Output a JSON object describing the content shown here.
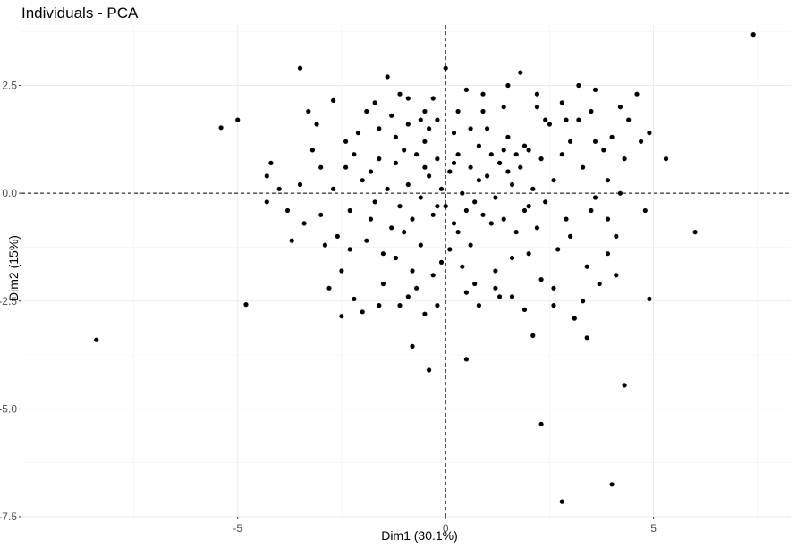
{
  "chart_data": {
    "type": "scatter",
    "title": "Individuals - PCA",
    "xlabel": "Dim1 (30.1%)",
    "ylabel": "Dim2 (15%)",
    "xlim": [
      -10.2,
      8.3
    ],
    "ylim": [
      -7.5,
      3.9
    ],
    "x_ticks": [
      -5,
      0,
      5
    ],
    "x_tick_labels": [
      "-5",
      "0",
      "5"
    ],
    "y_ticks": [
      -7.5,
      -5.0,
      -2.5,
      0.0,
      2.5
    ],
    "y_tick_labels": [
      "-7.5",
      "-5.0",
      "-2.5",
      "0.0",
      "2.5"
    ],
    "grid": true,
    "reference_lines": {
      "x": 0,
      "y": 0,
      "style": "dashed"
    },
    "point_color": "#000000",
    "points": [
      [
        7.4,
        3.68
      ],
      [
        -8.4,
        -3.4
      ],
      [
        -5.4,
        1.52
      ],
      [
        -5.0,
        1.7
      ],
      [
        -4.8,
        -2.58
      ],
      [
        -3.5,
        2.9
      ],
      [
        6.0,
        -0.9
      ],
      [
        5.3,
        0.8
      ],
      [
        4.9,
        -2.45
      ],
      [
        4.3,
        -4.45
      ],
      [
        4.0,
        -6.75
      ],
      [
        2.8,
        -7.15
      ],
      [
        2.3,
        -5.35
      ],
      [
        3.4,
        -3.35
      ],
      [
        -0.4,
        -4.1
      ],
      [
        -0.8,
        -3.55
      ],
      [
        0.5,
        -3.85
      ],
      [
        -4.3,
        0.4
      ],
      [
        -4.2,
        0.7
      ],
      [
        -4.3,
        -0.2
      ],
      [
        -4.0,
        0.1
      ],
      [
        -3.8,
        -0.4
      ],
      [
        -3.7,
        -1.1
      ],
      [
        -3.3,
        1.9
      ],
      [
        -3.1,
        1.6
      ],
      [
        -3.0,
        -0.5
      ],
      [
        -2.8,
        -2.2
      ],
      [
        -2.5,
        -2.85
      ],
      [
        -2.7,
        2.15
      ],
      [
        -2.4,
        1.2
      ],
      [
        -2.2,
        0.9
      ],
      [
        -2.6,
        -1.0
      ],
      [
        -2.2,
        -2.45
      ],
      [
        -2.0,
        -2.75
      ],
      [
        -1.9,
        1.9
      ],
      [
        -1.8,
        -0.6
      ],
      [
        -1.6,
        0.8
      ],
      [
        -1.4,
        2.7
      ],
      [
        -1.2,
        1.3
      ],
      [
        -1.5,
        -1.4
      ],
      [
        -1.1,
        -2.6
      ],
      [
        -0.9,
        2.2
      ],
      [
        -0.8,
        -1.8
      ],
      [
        -0.6,
        1.7
      ],
      [
        -0.5,
        0.6
      ],
      [
        -0.5,
        -2.8
      ],
      [
        -0.3,
        2.2
      ],
      [
        -0.2,
        -0.3
      ],
      [
        -0.1,
        -1.6
      ],
      [
        0.0,
        2.9
      ],
      [
        0.2,
        0.7
      ],
      [
        0.3,
        -0.9
      ],
      [
        0.5,
        2.4
      ],
      [
        0.6,
        1.5
      ],
      [
        0.7,
        -2.1
      ],
      [
        0.8,
        0.3
      ],
      [
        0.9,
        1.9
      ],
      [
        1.1,
        -0.7
      ],
      [
        1.3,
        -2.4
      ],
      [
        1.4,
        2.0
      ],
      [
        1.5,
        0.5
      ],
      [
        1.6,
        -1.5
      ],
      [
        1.8,
        2.8
      ],
      [
        1.9,
        1.1
      ],
      [
        2.0,
        -0.3
      ],
      [
        2.1,
        -3.3
      ],
      [
        2.2,
        2.3
      ],
      [
        2.3,
        -2.0
      ],
      [
        2.5,
        1.6
      ],
      [
        2.6,
        0.3
      ],
      [
        2.7,
        -1.3
      ],
      [
        2.8,
        2.1
      ],
      [
        2.9,
        -0.6
      ],
      [
        3.0,
        1.2
      ],
      [
        3.1,
        -2.9
      ],
      [
        3.2,
        2.5
      ],
      [
        3.3,
        0.6
      ],
      [
        3.4,
        -1.7
      ],
      [
        3.5,
        1.9
      ],
      [
        3.6,
        -0.1
      ],
      [
        3.7,
        -2.1
      ],
      [
        3.8,
        1.0
      ],
      [
        3.9,
        -0.6
      ],
      [
        4.0,
        1.3
      ],
      [
        4.1,
        -1.0
      ],
      [
        4.2,
        0.0
      ],
      [
        4.4,
        1.7
      ],
      [
        4.6,
        2.3
      ],
      [
        4.7,
        1.2
      ],
      [
        4.8,
        -0.4
      ],
      [
        4.9,
        1.4
      ],
      [
        -2.0,
        0.3
      ],
      [
        -1.7,
        -0.2
      ],
      [
        -1.6,
        1.5
      ],
      [
        -1.4,
        0.1
      ],
      [
        -1.3,
        -0.8
      ],
      [
        -1.2,
        0.7
      ],
      [
        -1.1,
        -0.3
      ],
      [
        -1.0,
        1.0
      ],
      [
        -0.9,
        0.2
      ],
      [
        -0.8,
        -0.6
      ],
      [
        -0.7,
        0.9
      ],
      [
        -0.6,
        -0.1
      ],
      [
        -0.5,
        1.2
      ],
      [
        -0.4,
        0.4
      ],
      [
        -0.3,
        -0.5
      ],
      [
        -0.2,
        0.8
      ],
      [
        -0.1,
        0.1
      ],
      [
        0.0,
        -0.3
      ],
      [
        0.1,
        0.5
      ],
      [
        0.2,
        -0.7
      ],
      [
        0.3,
        0.9
      ],
      [
        0.4,
        0.0
      ],
      [
        0.5,
        -0.4
      ],
      [
        0.6,
        0.6
      ],
      [
        0.7,
        -0.2
      ],
      [
        0.8,
        1.1
      ],
      [
        0.9,
        -0.5
      ],
      [
        1.0,
        0.4
      ],
      [
        1.1,
        0.9
      ],
      [
        1.2,
        -0.1
      ],
      [
        1.3,
        0.7
      ],
      [
        1.4,
        -0.6
      ],
      [
        1.5,
        1.3
      ],
      [
        1.6,
        0.2
      ],
      [
        1.7,
        -0.9
      ],
      [
        1.8,
        0.6
      ],
      [
        1.9,
        -0.4
      ],
      [
        2.0,
        1.0
      ],
      [
        2.1,
        0.1
      ],
      [
        2.2,
        -0.8
      ],
      [
        2.3,
        0.8
      ],
      [
        2.4,
        -0.2
      ],
      [
        -3.5,
        0.2
      ],
      [
        -3.4,
        -0.7
      ],
      [
        -3.2,
        1.0
      ],
      [
        -3.0,
        0.6
      ],
      [
        -2.9,
        -1.2
      ],
      [
        -2.7,
        0.1
      ],
      [
        -2.5,
        -1.8
      ],
      [
        -2.4,
        0.6
      ],
      [
        -2.3,
        -0.4
      ],
      [
        -2.1,
        1.4
      ],
      [
        -1.9,
        -1.1
      ],
      [
        -1.8,
        0.5
      ],
      [
        -1.5,
        -2.1
      ],
      [
        -1.3,
        1.8
      ],
      [
        -1.2,
        -1.5
      ],
      [
        -1.0,
        -0.9
      ],
      [
        -0.9,
        1.6
      ],
      [
        -0.7,
        -2.2
      ],
      [
        -0.6,
        -1.2
      ],
      [
        -0.4,
        1.5
      ],
      [
        -0.3,
        -1.9
      ],
      [
        -0.2,
        1.7
      ],
      [
        0.1,
        -1.3
      ],
      [
        0.2,
        1.4
      ],
      [
        0.4,
        -1.7
      ],
      [
        0.6,
        -1.2
      ],
      [
        0.8,
        -2.6
      ],
      [
        1.0,
        1.5
      ],
      [
        1.2,
        -1.8
      ],
      [
        1.4,
        1.0
      ],
      [
        1.6,
        -2.4
      ],
      [
        1.7,
        0.9
      ],
      [
        2.0,
        -1.4
      ],
      [
        2.4,
        1.7
      ],
      [
        2.6,
        -2.6
      ],
      [
        2.8,
        0.9
      ],
      [
        3.0,
        -1.0
      ],
      [
        3.2,
        1.7
      ],
      [
        3.5,
        -0.4
      ],
      [
        3.6,
        1.2
      ],
      [
        3.9,
        0.3
      ],
      [
        4.1,
        -1.9
      ],
      [
        4.3,
        0.8
      ],
      [
        -1.7,
        2.1
      ],
      [
        -1.1,
        2.3
      ],
      [
        -0.5,
        1.9
      ],
      [
        0.3,
        1.9
      ],
      [
        0.9,
        2.3
      ],
      [
        1.5,
        2.5
      ],
      [
        2.2,
        2.0
      ],
      [
        2.9,
        1.7
      ],
      [
        3.6,
        2.4
      ],
      [
        4.2,
        2.0
      ],
      [
        -2.3,
        -1.3
      ],
      [
        -1.6,
        -2.6
      ],
      [
        -0.9,
        -2.4
      ],
      [
        -0.2,
        -2.6
      ],
      [
        0.5,
        -2.3
      ],
      [
        1.2,
        -2.2
      ],
      [
        1.9,
        -2.7
      ],
      [
        2.6,
        -2.2
      ],
      [
        3.3,
        -2.5
      ],
      [
        3.9,
        -1.4
      ]
    ]
  }
}
